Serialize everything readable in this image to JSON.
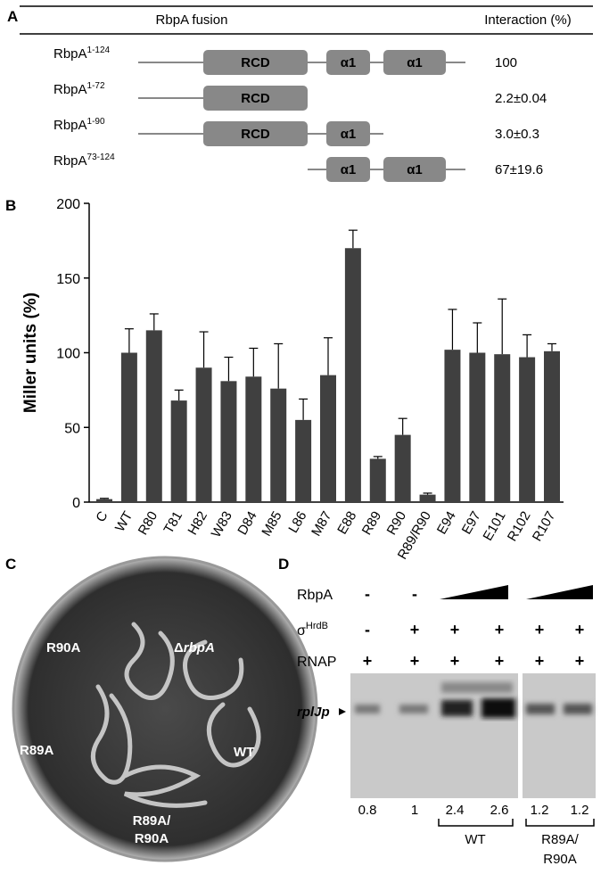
{
  "panels": {
    "a": "A",
    "b": "B",
    "c": "C",
    "d": "D"
  },
  "panel_a": {
    "header": {
      "fusion": "RbpA fusion",
      "interaction": "Interaction (%)"
    },
    "rows": [
      {
        "name": "RbpA",
        "range": "1-124",
        "domains": [
          "RCD",
          "α1",
          "α1"
        ],
        "interaction": "100"
      },
      {
        "name": "RbpA",
        "range": "1-72",
        "domains": [
          "RCD"
        ],
        "interaction": "2.2±0.04"
      },
      {
        "name": "RbpA",
        "range": "1-90",
        "domains": [
          "RCD",
          "α1"
        ],
        "interaction": "3.0±0.3"
      },
      {
        "name": "RbpA",
        "range": "73-124",
        "domains": [
          "α1",
          "α1"
        ],
        "interaction": "67±19.6"
      }
    ]
  },
  "chart_data": {
    "type": "bar",
    "ylabel": "Miller units (%)",
    "categories": [
      "C",
      "WT",
      "R80",
      "T81",
      "H82",
      "W83",
      "D84",
      "M85",
      "L86",
      "M87",
      "E88",
      "R89",
      "R90",
      "R89/R90",
      "E94",
      "E97",
      "E101",
      "R102",
      "R107"
    ],
    "values": [
      2,
      100,
      115,
      68,
      90,
      81,
      84,
      76,
      55,
      85,
      170,
      29,
      45,
      5,
      102,
      100,
      99,
      97,
      101
    ],
    "errors": [
      0.5,
      16,
      11,
      7,
      24,
      16,
      19,
      30,
      14,
      25,
      12,
      1.5,
      11,
      1,
      27,
      20,
      37,
      15,
      5
    ],
    "color": "#404040",
    "ylim": [
      0,
      200
    ],
    "yticks": [
      0,
      50,
      100,
      150,
      200
    ]
  },
  "panel_c": {
    "r90a": "R90A",
    "delta": "Δ",
    "rbpa": "rbpA",
    "r89a": "R89A",
    "wt": "WT",
    "double": [
      "R89A/",
      "R90A"
    ]
  },
  "panel_d": {
    "rows": [
      {
        "name": "RbpA",
        "marks": [
          "-",
          "-"
        ]
      },
      {
        "name": "σ",
        "sup": "HrdB",
        "marks": [
          "-",
          "+",
          "+",
          "+",
          "+",
          "+"
        ]
      },
      {
        "name": "RNAP",
        "marks": [
          "+",
          "+",
          "+",
          "+",
          "+",
          "+"
        ]
      }
    ],
    "promoter": "rplJp",
    "quant": [
      0.8,
      1,
      2.4,
      2.6,
      1.2,
      1.2
    ],
    "groups": {
      "wt": "WT",
      "mutant": [
        "R89A/",
        "R90A"
      ]
    }
  }
}
